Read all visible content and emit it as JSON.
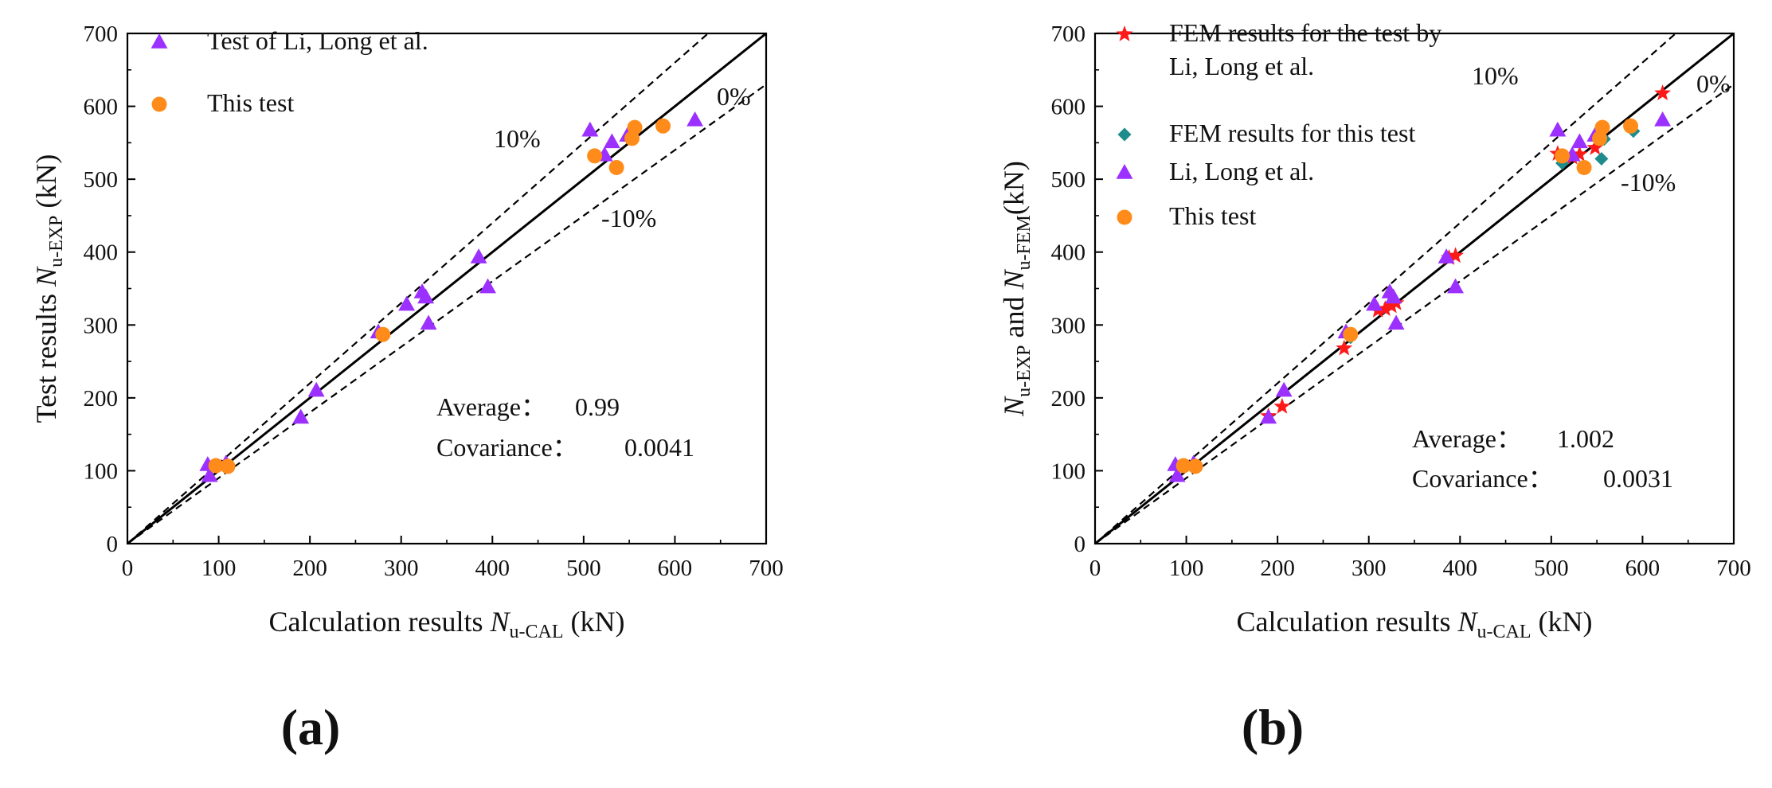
{
  "colors": {
    "triangle": "#9b30ff",
    "circle": "#ff8c1a",
    "star": "#ff1a1a",
    "diamond": "#1e8c8c",
    "axis": "#000000"
  },
  "chart_data": [
    {
      "type": "scatter",
      "panel_label": "(a)",
      "title": "",
      "xlabel": {
        "prefix": "Calculation results ",
        "var": "N",
        "sub": "u-CAL",
        "suffix": " (kN)"
      },
      "ylabel": {
        "prefix": "Test results ",
        "var": "N",
        "sub": "u-EXP",
        "suffix": " (kN)"
      },
      "xlim": [
        0,
        700
      ],
      "ylim": [
        0,
        700
      ],
      "xticks": [
        "0",
        "100",
        "200",
        "300",
        "400",
        "500",
        "600",
        "700"
      ],
      "yticks": [
        "0",
        "100",
        "200",
        "300",
        "400",
        "500",
        "600",
        "700"
      ],
      "grid": false,
      "legend_position": "top-left",
      "reference_lines": [
        {
          "label": "0%",
          "slope": 1.0,
          "style": "solid"
        },
        {
          "label": "10%",
          "slope": 1.1,
          "style": "dashed"
        },
        {
          "label": "-10%",
          "slope": 0.9,
          "style": "dashed"
        }
      ],
      "line_labels": {
        "zero": "0%",
        "plus": "10%",
        "minus": "-10%"
      },
      "stats": [
        {
          "label": "Average：",
          "value": "0.99"
        },
        {
          "label": "Covariance：",
          "value": "0.0041"
        }
      ],
      "series": [
        {
          "name": "Test of Li, Long et al.",
          "marker": "triangle",
          "points": [
            [
              88,
              108
            ],
            [
              90,
              93
            ],
            [
              108,
              110
            ],
            [
              190,
              173
            ],
            [
              207,
              210
            ],
            [
              275,
              290
            ],
            [
              306,
              328
            ],
            [
              323,
              345
            ],
            [
              327,
              338
            ],
            [
              330,
              302
            ],
            [
              385,
              393
            ],
            [
              395,
              352
            ],
            [
              507,
              567
            ],
            [
              523,
              533
            ],
            [
              531,
              551
            ],
            [
              548,
              560
            ],
            [
              622,
              581
            ]
          ]
        },
        {
          "name": "This test",
          "marker": "circle",
          "points": [
            [
              97,
              107
            ],
            [
              110,
              106
            ],
            [
              280,
              287
            ],
            [
              512,
              532
            ],
            [
              536,
              516
            ],
            [
              553,
              556
            ],
            [
              556,
              571
            ],
            [
              587,
              573
            ]
          ]
        }
      ]
    },
    {
      "type": "scatter",
      "panel_label": "(b)",
      "title": "",
      "xlabel": {
        "prefix": "Calculation results ",
        "var": "N",
        "sub": "u-CAL",
        "suffix": " (kN)"
      },
      "ylabel": {
        "var1": "N",
        "sub1": "u-EXP",
        "mid": " and ",
        "var2": "N",
        "sub2": "u-FEM",
        "suffix": "(kN)"
      },
      "xlim": [
        0,
        700
      ],
      "ylim": [
        0,
        700
      ],
      "xticks": [
        "0",
        "100",
        "200",
        "300",
        "400",
        "500",
        "600",
        "700"
      ],
      "yticks": [
        "0",
        "100",
        "200",
        "300",
        "400",
        "500",
        "600",
        "700"
      ],
      "grid": false,
      "legend_position": "top-left",
      "reference_lines": [
        {
          "label": "0%",
          "slope": 1.0,
          "style": "solid"
        },
        {
          "label": "10%",
          "slope": 1.1,
          "style": "dashed"
        },
        {
          "label": "-10%",
          "slope": 0.9,
          "style": "dashed"
        }
      ],
      "line_labels": {
        "zero": "0%",
        "plus": "10%",
        "minus": "-10%"
      },
      "stats": [
        {
          "label": "Average：",
          "value": "1.002"
        },
        {
          "label": "Covariance：",
          "value": "0.0031"
        }
      ],
      "series": [
        {
          "name": "FEM results for the test by",
          "name_line2": "Li, Long et al.",
          "marker": "star",
          "points": [
            [
              190,
              175
            ],
            [
              205,
              188
            ],
            [
              273,
              268
            ],
            [
              310,
              320
            ],
            [
              318,
              322
            ],
            [
              325,
              326
            ],
            [
              330,
              330
            ],
            [
              388,
              392
            ],
            [
              395,
              395
            ],
            [
              507,
              535
            ],
            [
              523,
              530
            ],
            [
              531,
              534
            ],
            [
              548,
              543
            ],
            [
              622,
              618
            ]
          ]
        },
        {
          "name": "FEM results for this test",
          "marker": "diamond",
          "points": [
            [
              98,
              106
            ],
            [
              110,
              105
            ],
            [
              280,
              283
            ],
            [
              512,
              522
            ],
            [
              555,
              528
            ],
            [
              558,
              555
            ],
            [
              590,
              566
            ]
          ]
        },
        {
          "name": "Li, Long et al.",
          "marker": "triangle",
          "points": [
            [
              88,
              108
            ],
            [
              90,
              93
            ],
            [
              108,
              110
            ],
            [
              190,
              173
            ],
            [
              207,
              210
            ],
            [
              275,
              290
            ],
            [
              306,
              328
            ],
            [
              323,
              345
            ],
            [
              327,
              338
            ],
            [
              330,
              302
            ],
            [
              385,
              393
            ],
            [
              395,
              352
            ],
            [
              507,
              567
            ],
            [
              523,
              533
            ],
            [
              531,
              551
            ],
            [
              548,
              560
            ],
            [
              622,
              581
            ]
          ]
        },
        {
          "name": "This test",
          "marker": "circle",
          "points": [
            [
              97,
              107
            ],
            [
              110,
              106
            ],
            [
              280,
              287
            ],
            [
              512,
              532
            ],
            [
              536,
              516
            ],
            [
              553,
              556
            ],
            [
              556,
              571
            ],
            [
              587,
              573
            ]
          ]
        }
      ]
    }
  ]
}
